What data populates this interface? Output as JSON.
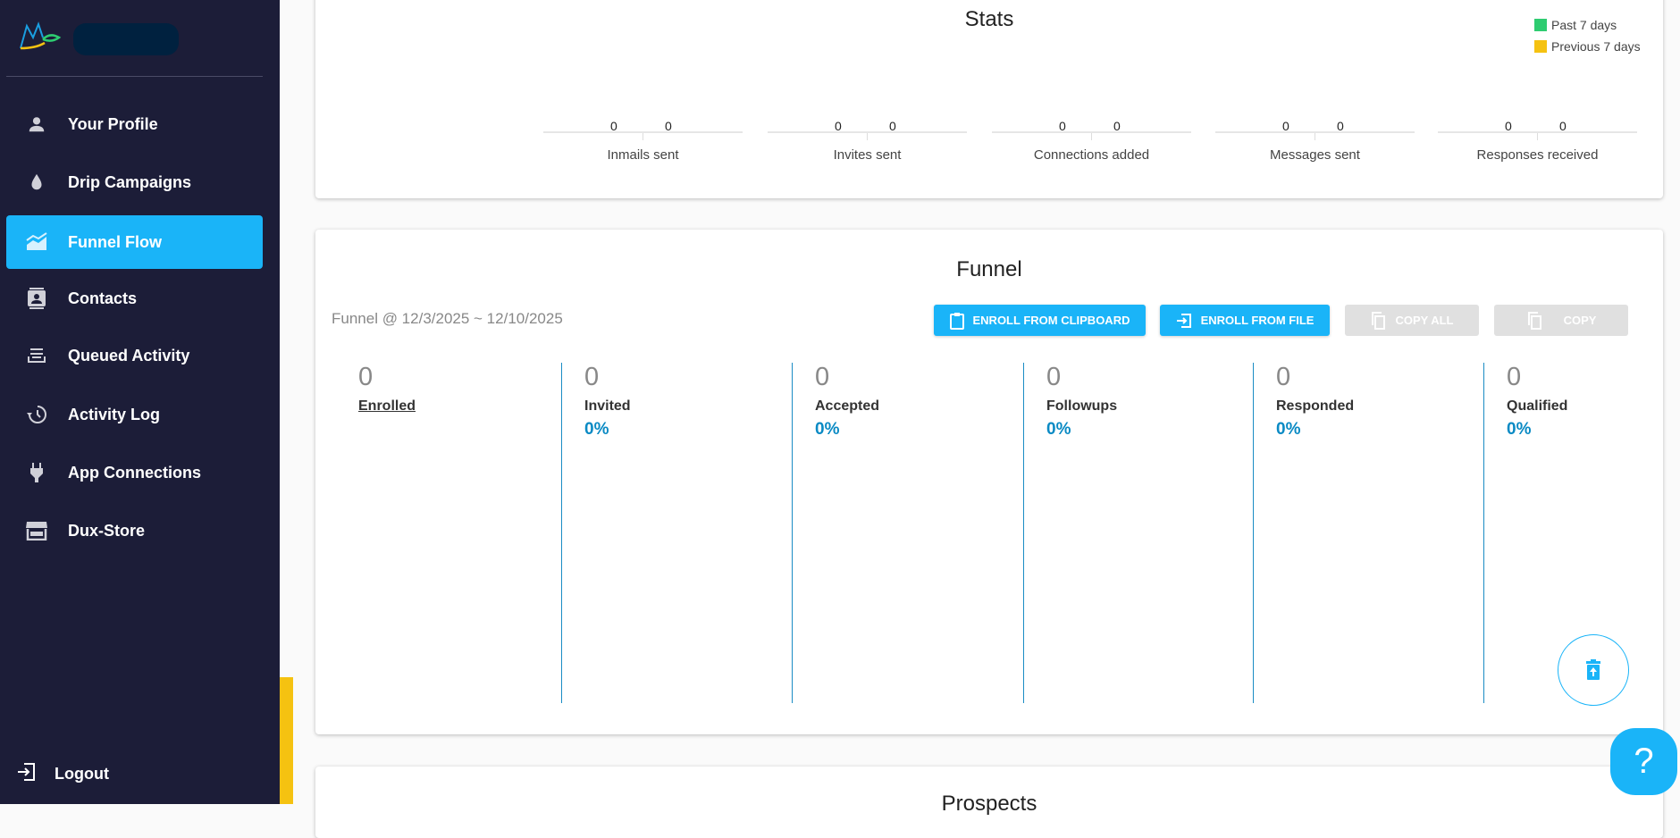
{
  "sidebar": {
    "items": [
      {
        "label": "Your Profile",
        "icon": "person-icon"
      },
      {
        "label": "Drip Campaigns",
        "icon": "drop-icon"
      },
      {
        "label": "Funnel Flow",
        "icon": "chart-area-icon",
        "active": true
      },
      {
        "label": "Contacts",
        "icon": "contacts-icon"
      },
      {
        "label": "Queued Activity",
        "icon": "queue-icon"
      },
      {
        "label": "Activity Log",
        "icon": "history-icon"
      },
      {
        "label": "App Connections",
        "icon": "plug-icon"
      },
      {
        "label": "Dux-Store",
        "icon": "store-icon"
      }
    ],
    "logout": "Logout"
  },
  "stats": {
    "title": "Stats",
    "legend": [
      {
        "label": "Past 7 days",
        "color": "#2ecc71"
      },
      {
        "label": "Previous 7 days",
        "color": "#f5c211"
      }
    ],
    "groups": [
      {
        "label": "Inmails sent",
        "past": "0",
        "previous": "0"
      },
      {
        "label": "Invites sent",
        "past": "0",
        "previous": "0"
      },
      {
        "label": "Connections added",
        "past": "0",
        "previous": "0"
      },
      {
        "label": "Messages sent",
        "past": "0",
        "previous": "0"
      },
      {
        "label": "Responses received",
        "past": "0",
        "previous": "0"
      }
    ]
  },
  "funnel": {
    "title": "Funnel",
    "subtitle": "Funnel @ 12/3/2025 ~ 12/10/2025",
    "buttons": {
      "clipboard": "ENROLL FROM CLIPBOARD",
      "file": "ENROLL FROM FILE",
      "copy_all": "COPY ALL",
      "copy": "COPY"
    },
    "columns": [
      {
        "count": "0",
        "label": "Enrolled",
        "pct": ""
      },
      {
        "count": "0",
        "label": "Invited",
        "pct": "0%"
      },
      {
        "count": "0",
        "label": "Accepted",
        "pct": "0%"
      },
      {
        "count": "0",
        "label": "Followups",
        "pct": "0%"
      },
      {
        "count": "0",
        "label": "Responded",
        "pct": "0%"
      },
      {
        "count": "0",
        "label": "Qualified",
        "pct": "0%"
      }
    ]
  },
  "prospects": {
    "title": "Prospects"
  },
  "help": "?",
  "colors": {
    "sidebar": "#1c1d38",
    "accent": "#1ab4f8",
    "percent": "#0a8ac4"
  }
}
